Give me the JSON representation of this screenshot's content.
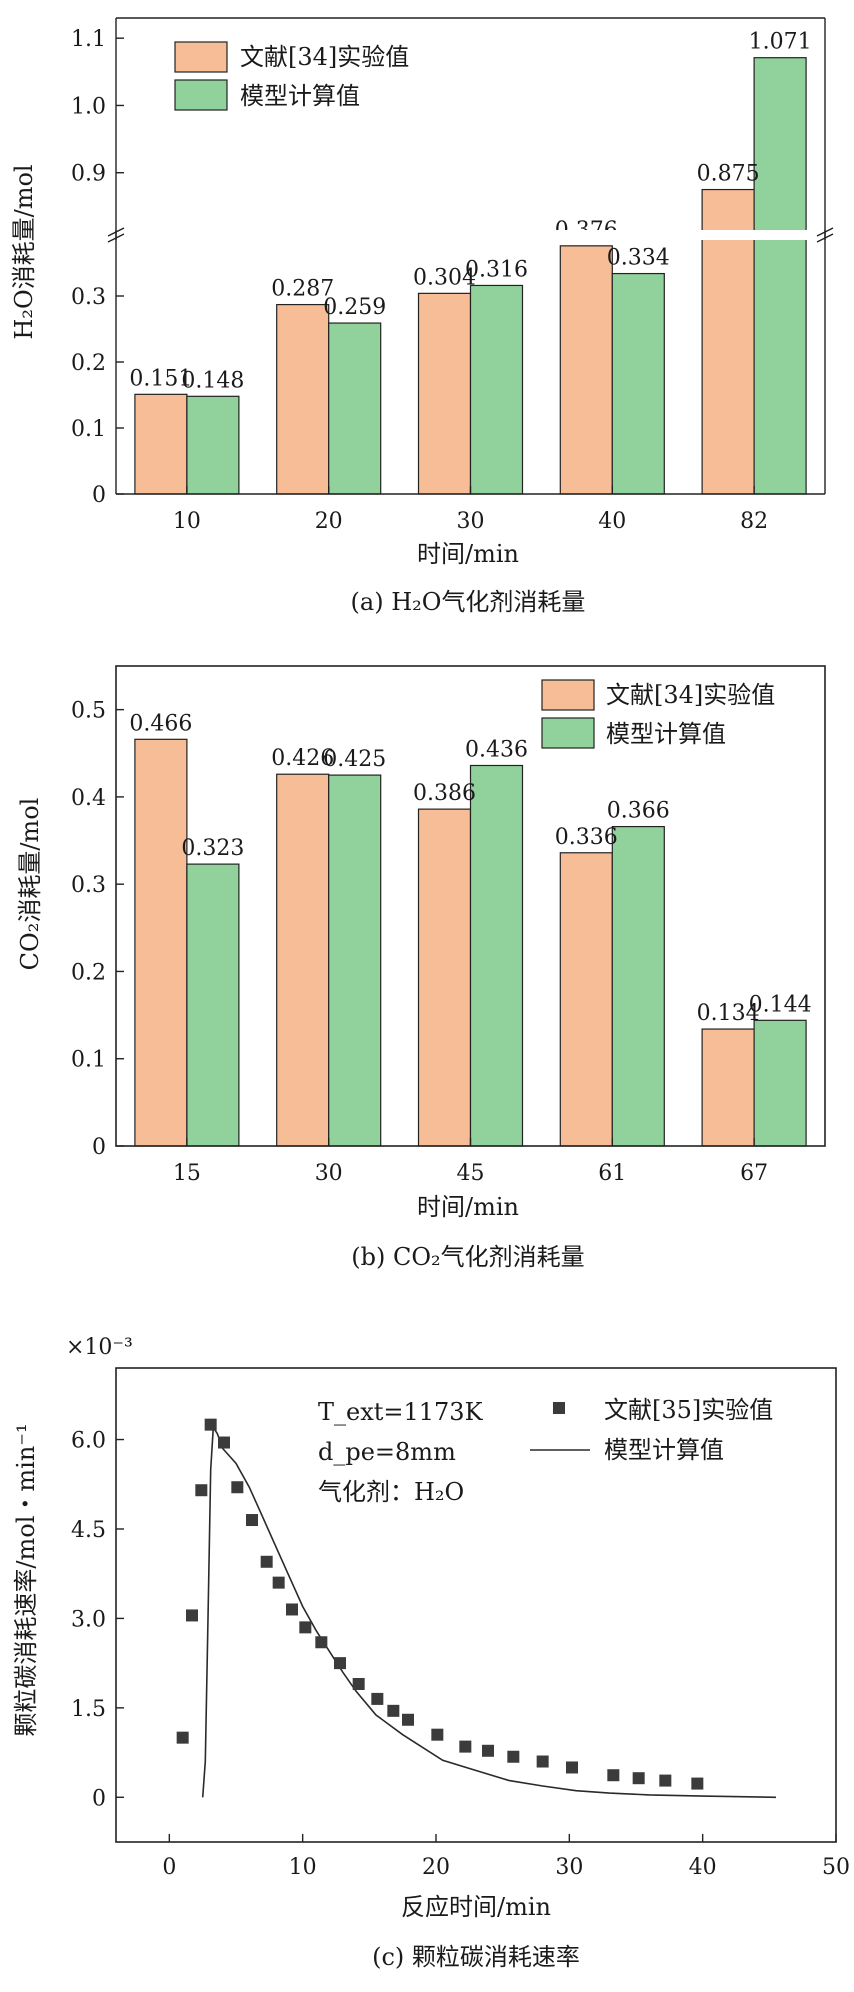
{
  "chart_data": [
    {
      "id": "a",
      "type": "bar",
      "caption": "(a) H₂O气化剂消耗量",
      "xlabel": "时间/min",
      "ylabel": "H₂O消耗量/mol",
      "categories": [
        "10",
        "20",
        "30",
        "40",
        "82"
      ],
      "series": [
        {
          "name": "文献[34]实验值",
          "color": "#f7bd96",
          "values": [
            0.151,
            0.287,
            0.304,
            0.376,
            0.875
          ]
        },
        {
          "name": "模型计算值",
          "color": "#91d19c",
          "values": [
            0.148,
            0.259,
            0.316,
            0.334,
            1.071
          ]
        }
      ],
      "axis_break": true,
      "ylim_lower": [
        0,
        0.4
      ],
      "ylim_upper": [
        0.8,
        1.13
      ],
      "yticks_lower": [
        "0",
        "0.1",
        "0.2",
        "0.3"
      ],
      "yticks_upper": [
        "0.9",
        "1.0",
        "1.1"
      ],
      "legend_position": "top-left"
    },
    {
      "id": "b",
      "type": "bar",
      "caption": "(b) CO₂气化剂消耗量",
      "xlabel": "时间/min",
      "ylabel": "CO₂消耗量/mol",
      "categories": [
        "15",
        "30",
        "45",
        "61",
        "67"
      ],
      "series": [
        {
          "name": "文献[34]实验值",
          "color": "#f7bd96",
          "values": [
            0.466,
            0.426,
            0.386,
            0.336,
            0.134
          ]
        },
        {
          "name": "模型计算值",
          "color": "#91d19c",
          "values": [
            0.323,
            0.425,
            0.436,
            0.366,
            0.144
          ]
        }
      ],
      "ylim": [
        0,
        0.55
      ],
      "yticks": [
        "0",
        "0.1",
        "0.2",
        "0.3",
        "0.4",
        "0.5"
      ],
      "legend_position": "top-right"
    },
    {
      "id": "c",
      "type": "scatter",
      "caption": "(c) 颗粒碳消耗速率",
      "xlabel": "反应时间/min",
      "ylabel": "颗粒碳消耗速率/mol・min⁻¹",
      "y_multiplier": "×10⁻³",
      "xlim": [
        -4,
        50
      ],
      "ylim": [
        -0.75,
        7.2
      ],
      "xticks": [
        "0",
        "10",
        "20",
        "30",
        "40",
        "50"
      ],
      "yticks": [
        "0",
        "1.5",
        "3.0",
        "4.5",
        "6.0"
      ],
      "annotations": [
        "T_ext=1173K",
        "d_pe=8mm",
        "气化剂：H₂O"
      ],
      "series": [
        {
          "name": "文献[35]实验值",
          "kind": "scatter",
          "points": [
            [
              1,
              1.0
            ],
            [
              1.7,
              3.05
            ],
            [
              2.4,
              5.15
            ],
            [
              3.1,
              6.25
            ],
            [
              4.1,
              5.95
            ],
            [
              5.1,
              5.2
            ],
            [
              6.2,
              4.65
            ],
            [
              7.3,
              3.95
            ],
            [
              8.2,
              3.6
            ],
            [
              9.2,
              3.15
            ],
            [
              10.2,
              2.85
            ],
            [
              11.4,
              2.6
            ],
            [
              12.8,
              2.25
            ],
            [
              14.2,
              1.9
            ],
            [
              15.6,
              1.65
            ],
            [
              16.8,
              1.45
            ],
            [
              17.9,
              1.3
            ],
            [
              20.1,
              1.05
            ],
            [
              22.2,
              0.85
            ],
            [
              23.9,
              0.78
            ],
            [
              25.8,
              0.68
            ],
            [
              28.0,
              0.6
            ],
            [
              30.2,
              0.5
            ],
            [
              33.3,
              0.37
            ],
            [
              35.2,
              0.32
            ],
            [
              37.2,
              0.28
            ],
            [
              39.6,
              0.23
            ]
          ]
        },
        {
          "name": "模型计算值",
          "kind": "line",
          "points": [
            [
              2.5,
              0
            ],
            [
              2.7,
              0.6
            ],
            [
              2.9,
              3.0
            ],
            [
              3.1,
              5.5
            ],
            [
              3.3,
              6.2
            ],
            [
              3.6,
              6.1
            ],
            [
              4.0,
              5.85
            ],
            [
              5.0,
              5.6
            ],
            [
              6.0,
              5.2
            ],
            [
              7.0,
              4.7
            ],
            [
              8.0,
              4.2
            ],
            [
              9.0,
              3.7
            ],
            [
              10.0,
              3.2
            ],
            [
              11.0,
              2.8
            ],
            [
              12.0,
              2.45
            ],
            [
              13.0,
              2.1
            ],
            [
              14.0,
              1.78
            ],
            [
              15.5,
              1.38
            ],
            [
              17.5,
              1.05
            ],
            [
              20.5,
              0.62
            ],
            [
              23.0,
              0.45
            ],
            [
              25.5,
              0.28
            ],
            [
              28.0,
              0.19
            ],
            [
              30.5,
              0.11
            ],
            [
              33.0,
              0.07
            ],
            [
              36.0,
              0.04
            ],
            [
              40.0,
              0.02
            ],
            [
              45.5,
              0.0
            ]
          ]
        }
      ],
      "legend_position": "top-right"
    }
  ]
}
